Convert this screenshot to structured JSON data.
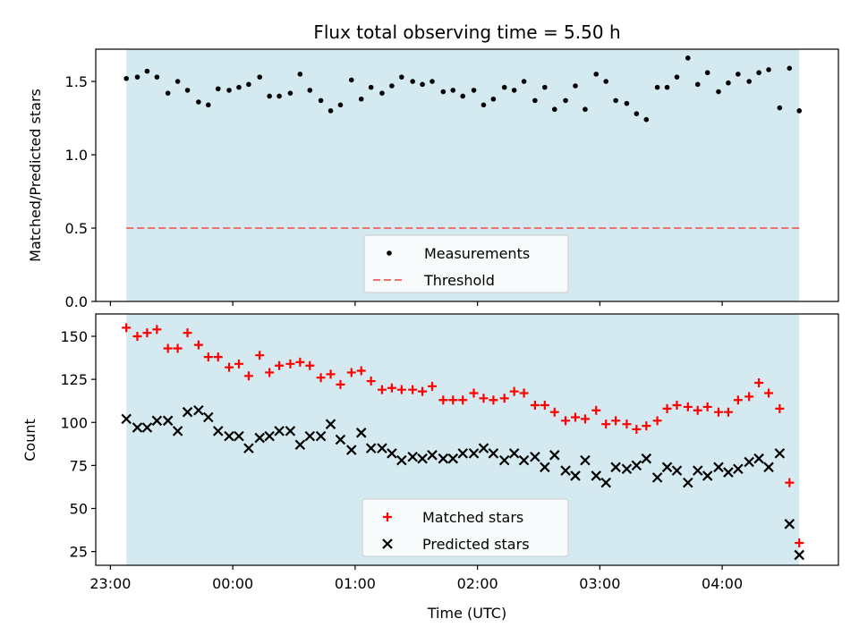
{
  "chart_data": {
    "type": "scatter",
    "title": "Flux total observing time = 5.50 h",
    "xlabel": "Time (UTC)",
    "x_tick_labels": [
      "23:00",
      "00:00",
      "01:00",
      "02:00",
      "03:00",
      "04:00"
    ],
    "x_range_hours": [
      -0.12,
      5.95
    ],
    "colors": {
      "observing_band": "#d4eaf0",
      "measurements": "#000000",
      "threshold": "#f07070",
      "matched": "#ff0000",
      "predicted": "#000000"
    },
    "panels": [
      {
        "ylabel": "Matched/Predicted stars",
        "ylim": [
          0,
          1.72
        ],
        "y_ticks": [
          0.0,
          0.5,
          1.0,
          1.5
        ],
        "y_tick_labels": [
          "0.0",
          "0.5",
          "1.0",
          "1.5"
        ],
        "band_hours": [
          0.13,
          5.63
        ],
        "threshold": 0.5,
        "legend": [
          "Measurements",
          "Threshold"
        ],
        "legend_position": "lower-center",
        "series": [
          {
            "name": "Measurements",
            "marker": "dot",
            "x": [
              0.13,
              0.22,
              0.3,
              0.38,
              0.47,
              0.55,
              0.63,
              0.72,
              0.8,
              0.88,
              0.97,
              1.05,
              1.13,
              1.22,
              1.3,
              1.38,
              1.47,
              1.55,
              1.63,
              1.72,
              1.8,
              1.88,
              1.97,
              2.05,
              2.13,
              2.22,
              2.3,
              2.38,
              2.47,
              2.55,
              2.63,
              2.72,
              2.8,
              2.88,
              2.97,
              3.05,
              3.13,
              3.22,
              3.3,
              3.38,
              3.47,
              3.55,
              3.63,
              3.72,
              3.8,
              3.88,
              3.97,
              4.05,
              4.13,
              4.22,
              4.3,
              4.38,
              4.47,
              4.55,
              4.63,
              4.72,
              4.8,
              4.88,
              4.97,
              5.05,
              5.13,
              5.22,
              5.3,
              5.38,
              5.47,
              5.55,
              5.63
            ],
            "y": [
              1.52,
              1.53,
              1.57,
              1.53,
              1.42,
              1.5,
              1.44,
              1.36,
              1.34,
              1.45,
              1.44,
              1.46,
              1.48,
              1.53,
              1.4,
              1.4,
              1.42,
              1.55,
              1.44,
              1.37,
              1.3,
              1.34,
              1.51,
              1.38,
              1.46,
              1.42,
              1.47,
              1.53,
              1.5,
              1.48,
              1.5,
              1.43,
              1.44,
              1.4,
              1.44,
              1.34,
              1.38,
              1.46,
              1.44,
              1.5,
              1.37,
              1.46,
              1.31,
              1.37,
              1.47,
              1.31,
              1.55,
              1.5,
              1.37,
              1.35,
              1.28,
              1.24,
              1.46,
              1.46,
              1.53,
              1.66,
              1.48,
              1.56,
              1.43,
              1.49,
              1.55,
              1.5,
              1.56,
              1.58,
              1.32,
              1.59,
              1.3
            ]
          }
        ]
      },
      {
        "ylabel": "Count",
        "ylim": [
          17,
          163
        ],
        "y_ticks": [
          25,
          50,
          75,
          100,
          125,
          150
        ],
        "y_tick_labels": [
          "25",
          "50",
          "75",
          "100",
          "125",
          "150"
        ],
        "band_hours": [
          0.13,
          5.63
        ],
        "legend": [
          "Matched stars",
          "Predicted stars"
        ],
        "legend_position": "lower-center",
        "series": [
          {
            "name": "Matched stars",
            "marker": "plus",
            "x": [
              0.13,
              0.22,
              0.3,
              0.38,
              0.47,
              0.55,
              0.63,
              0.72,
              0.8,
              0.88,
              0.97,
              1.05,
              1.13,
              1.22,
              1.3,
              1.38,
              1.47,
              1.55,
              1.63,
              1.72,
              1.8,
              1.88,
              1.97,
              2.05,
              2.13,
              2.22,
              2.3,
              2.38,
              2.47,
              2.55,
              2.63,
              2.72,
              2.8,
              2.88,
              2.97,
              3.05,
              3.13,
              3.22,
              3.3,
              3.38,
              3.47,
              3.55,
              3.63,
              3.72,
              3.8,
              3.88,
              3.97,
              4.05,
              4.13,
              4.22,
              4.3,
              4.38,
              4.47,
              4.55,
              4.63,
              4.72,
              4.8,
              4.88,
              4.97,
              5.05,
              5.13,
              5.22,
              5.3,
              5.38,
              5.47,
              5.55,
              5.63
            ],
            "y": [
              155,
              150,
              152,
              154,
              143,
              143,
              152,
              145,
              138,
              138,
              132,
              134,
              127,
              139,
              129,
              133,
              134,
              135,
              133,
              126,
              128,
              122,
              129,
              130,
              124,
              119,
              120,
              119,
              119,
              118,
              121,
              113,
              113,
              113,
              117,
              114,
              113,
              114,
              118,
              117,
              110,
              110,
              106,
              101,
              103,
              102,
              107,
              99,
              101,
              99,
              96,
              98,
              101,
              108,
              110,
              109,
              107,
              109,
              106,
              106,
              113,
              115,
              123,
              117,
              108,
              65,
              30
            ]
          },
          {
            "name": "Predicted stars",
            "marker": "x",
            "x": [
              0.13,
              0.22,
              0.3,
              0.38,
              0.47,
              0.55,
              0.63,
              0.72,
              0.8,
              0.88,
              0.97,
              1.05,
              1.13,
              1.22,
              1.3,
              1.38,
              1.47,
              1.55,
              1.63,
              1.72,
              1.8,
              1.88,
              1.97,
              2.05,
              2.13,
              2.22,
              2.3,
              2.38,
              2.47,
              2.55,
              2.63,
              2.72,
              2.8,
              2.88,
              2.97,
              3.05,
              3.13,
              3.22,
              3.3,
              3.38,
              3.47,
              3.55,
              3.63,
              3.72,
              3.8,
              3.88,
              3.97,
              4.05,
              4.13,
              4.22,
              4.3,
              4.38,
              4.47,
              4.55,
              4.63,
              4.72,
              4.8,
              4.88,
              4.97,
              5.05,
              5.13,
              5.22,
              5.3,
              5.38,
              5.47,
              5.55,
              5.63
            ],
            "y": [
              102,
              97,
              97,
              101,
              101,
              95,
              106,
              107,
              103,
              95,
              92,
              92,
              85,
              91,
              92,
              95,
              95,
              87,
              92,
              92,
              99,
              90,
              84,
              94,
              85,
              85,
              82,
              78,
              80,
              79,
              81,
              79,
              79,
              82,
              82,
              85,
              82,
              78,
              82,
              78,
              80,
              74,
              81,
              72,
              69,
              78,
              69,
              65,
              74,
              73,
              75,
              79,
              68,
              74,
              72,
              65,
              72,
              69,
              74,
              71,
              73,
              77,
              79,
              74,
              82,
              41,
              23
            ]
          }
        ]
      }
    ]
  }
}
